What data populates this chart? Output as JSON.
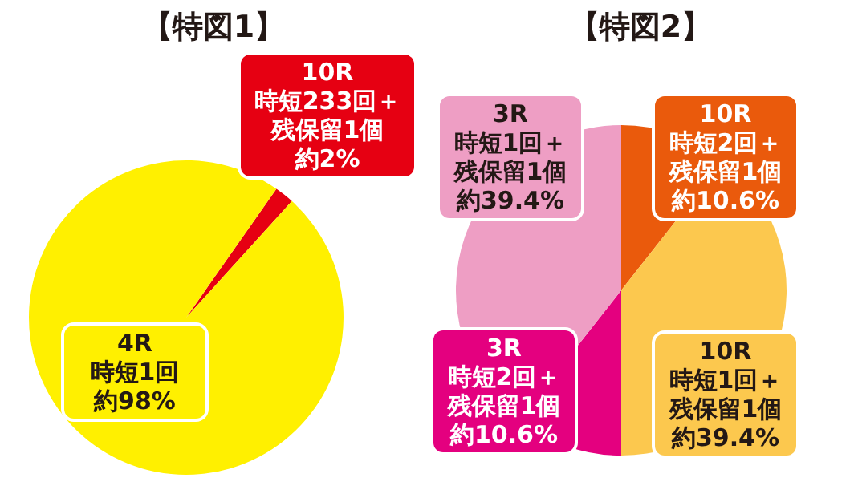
{
  "chart_data": [
    {
      "type": "pie",
      "title": "【特図1】",
      "categories": [
        "10R\n時短233回＋残保留1個",
        "4R\n時短1回"
      ],
      "values": [
        2,
        98
      ],
      "value_labels": [
        "約2%",
        "約98%"
      ],
      "colors": [
        "#e60012",
        "#fff000"
      ],
      "legend": false
    },
    {
      "type": "pie",
      "title": "【特図2】",
      "categories": [
        "10R\n時短2回＋残保留1個",
        "10R\n時短1回＋残保留1個",
        "3R\n時短2回＋残保留1個",
        "3R\n時短1回＋残保留1個"
      ],
      "values": [
        10.6,
        39.4,
        10.6,
        39.4
      ],
      "value_labels": [
        "約10.6%",
        "約39.4%",
        "約10.6%",
        "約39.4%"
      ],
      "colors": [
        "#ea5a0c",
        "#fcc84e",
        "#e4007f",
        "#ee9ec4"
      ],
      "legend": false
    }
  ]
}
